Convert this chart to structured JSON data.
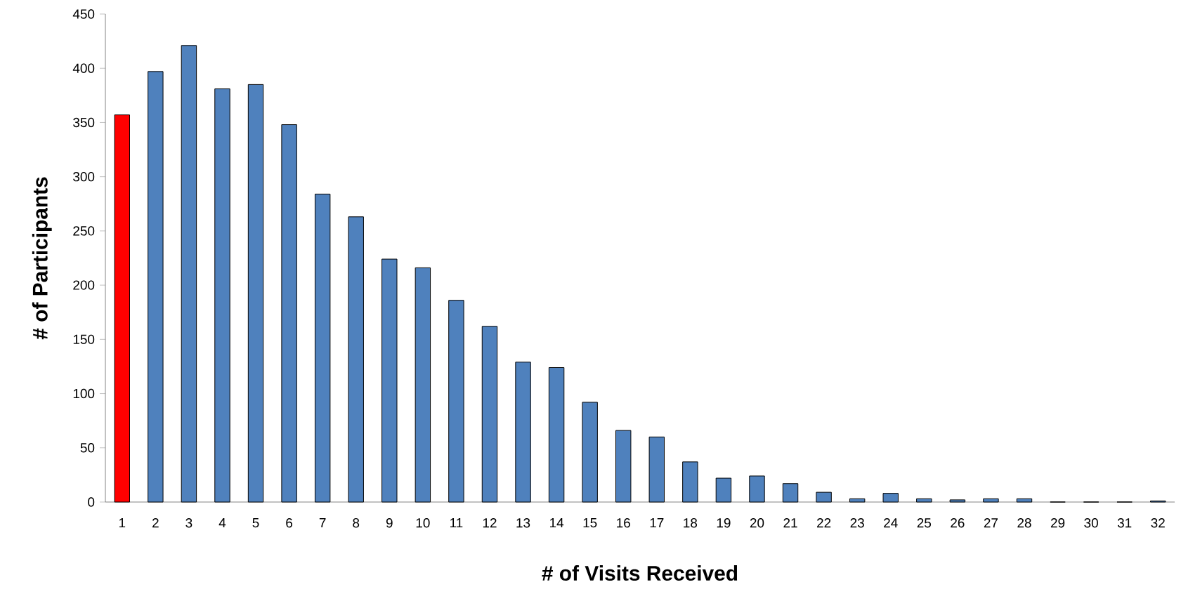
{
  "chart_data": {
    "type": "bar",
    "xlabel": "# of Visits Received",
    "ylabel": "# of Participants",
    "categories": [
      "1",
      "2",
      "3",
      "4",
      "5",
      "6",
      "7",
      "8",
      "9",
      "10",
      "11",
      "12",
      "13",
      "14",
      "15",
      "16",
      "17",
      "18",
      "19",
      "20",
      "21",
      "22",
      "23",
      "24",
      "25",
      "26",
      "27",
      "28",
      "29",
      "30",
      "31",
      "32"
    ],
    "values": [
      357,
      397,
      421,
      381,
      385,
      348,
      284,
      263,
      224,
      216,
      186,
      162,
      129,
      124,
      92,
      66,
      60,
      37,
      22,
      24,
      17,
      9,
      3,
      8,
      3,
      2,
      3,
      3,
      0,
      0,
      0,
      1
    ],
    "colors": [
      "#ff0000",
      "#4f81bd",
      "#4f81bd",
      "#4f81bd",
      "#4f81bd",
      "#4f81bd",
      "#4f81bd",
      "#4f81bd",
      "#4f81bd",
      "#4f81bd",
      "#4f81bd",
      "#4f81bd",
      "#4f81bd",
      "#4f81bd",
      "#4f81bd",
      "#4f81bd",
      "#4f81bd",
      "#4f81bd",
      "#4f81bd",
      "#4f81bd",
      "#4f81bd",
      "#4f81bd",
      "#4f81bd",
      "#4f81bd",
      "#4f81bd",
      "#4f81bd",
      "#4f81bd",
      "#4f81bd",
      "#4f81bd",
      "#4f81bd",
      "#4f81bd",
      "#4f81bd"
    ],
    "ylim": [
      0,
      450
    ],
    "yticks": [
      0,
      50,
      100,
      150,
      200,
      250,
      300,
      350,
      400,
      450
    ]
  }
}
